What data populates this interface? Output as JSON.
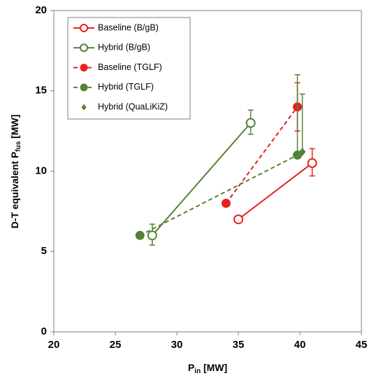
{
  "chart_data": {
    "type": "scatter",
    "xlabel": [
      "P",
      "in",
      " [MW]"
    ],
    "ylabel": [
      "D-T equivalent P",
      "fus",
      " [MW]"
    ],
    "xlim": [
      20,
      45
    ],
    "xticks": [
      20,
      25,
      30,
      35,
      40,
      45
    ],
    "ylim": [
      0,
      20
    ],
    "yticks": [
      0,
      5,
      10,
      15,
      20
    ],
    "legend": "top-left",
    "series": [
      {
        "name": "Baseline (B/gB)",
        "color": "#e8201c",
        "marker": "open-circle",
        "linestyle": "solid",
        "x": [
          35,
          41
        ],
        "values": [
          7,
          10.5
        ],
        "err_low": [
          null,
          9.7
        ],
        "err_high": [
          null,
          11.4
        ]
      },
      {
        "name": "Hybrid (B/gB)",
        "color": "#548235",
        "marker": "open-circle",
        "linestyle": "solid",
        "x": [
          28,
          36
        ],
        "values": [
          6,
          13
        ],
        "err_low": [
          5.4,
          12.3
        ],
        "err_high": [
          6.7,
          13.8
        ]
      },
      {
        "name": "Baseline (TGLF)",
        "color": "#e8201c",
        "marker": "filled-circle",
        "linestyle": "dashed",
        "x": [
          34,
          39.8
        ],
        "values": [
          8,
          14
        ],
        "err_low": [
          null,
          12.5
        ],
        "err_high": [
          null,
          15.5
        ]
      },
      {
        "name": "Hybrid (TGLF)",
        "color": "#548235",
        "marker": "filled-circle",
        "linestyle": "dashed",
        "x": [
          27,
          39.8
        ],
        "values": [
          6,
          11
        ],
        "err_low": [
          null,
          11
        ],
        "err_high": [
          null,
          16
        ]
      },
      {
        "name": "Hybrid (QuaLiKiZ)",
        "color": "#548235",
        "marker": "diamond",
        "linestyle": "none",
        "x": [
          40.2
        ],
        "values": [
          11.2
        ],
        "err_low": [
          11.2
        ],
        "err_high": [
          14.8
        ]
      }
    ]
  }
}
